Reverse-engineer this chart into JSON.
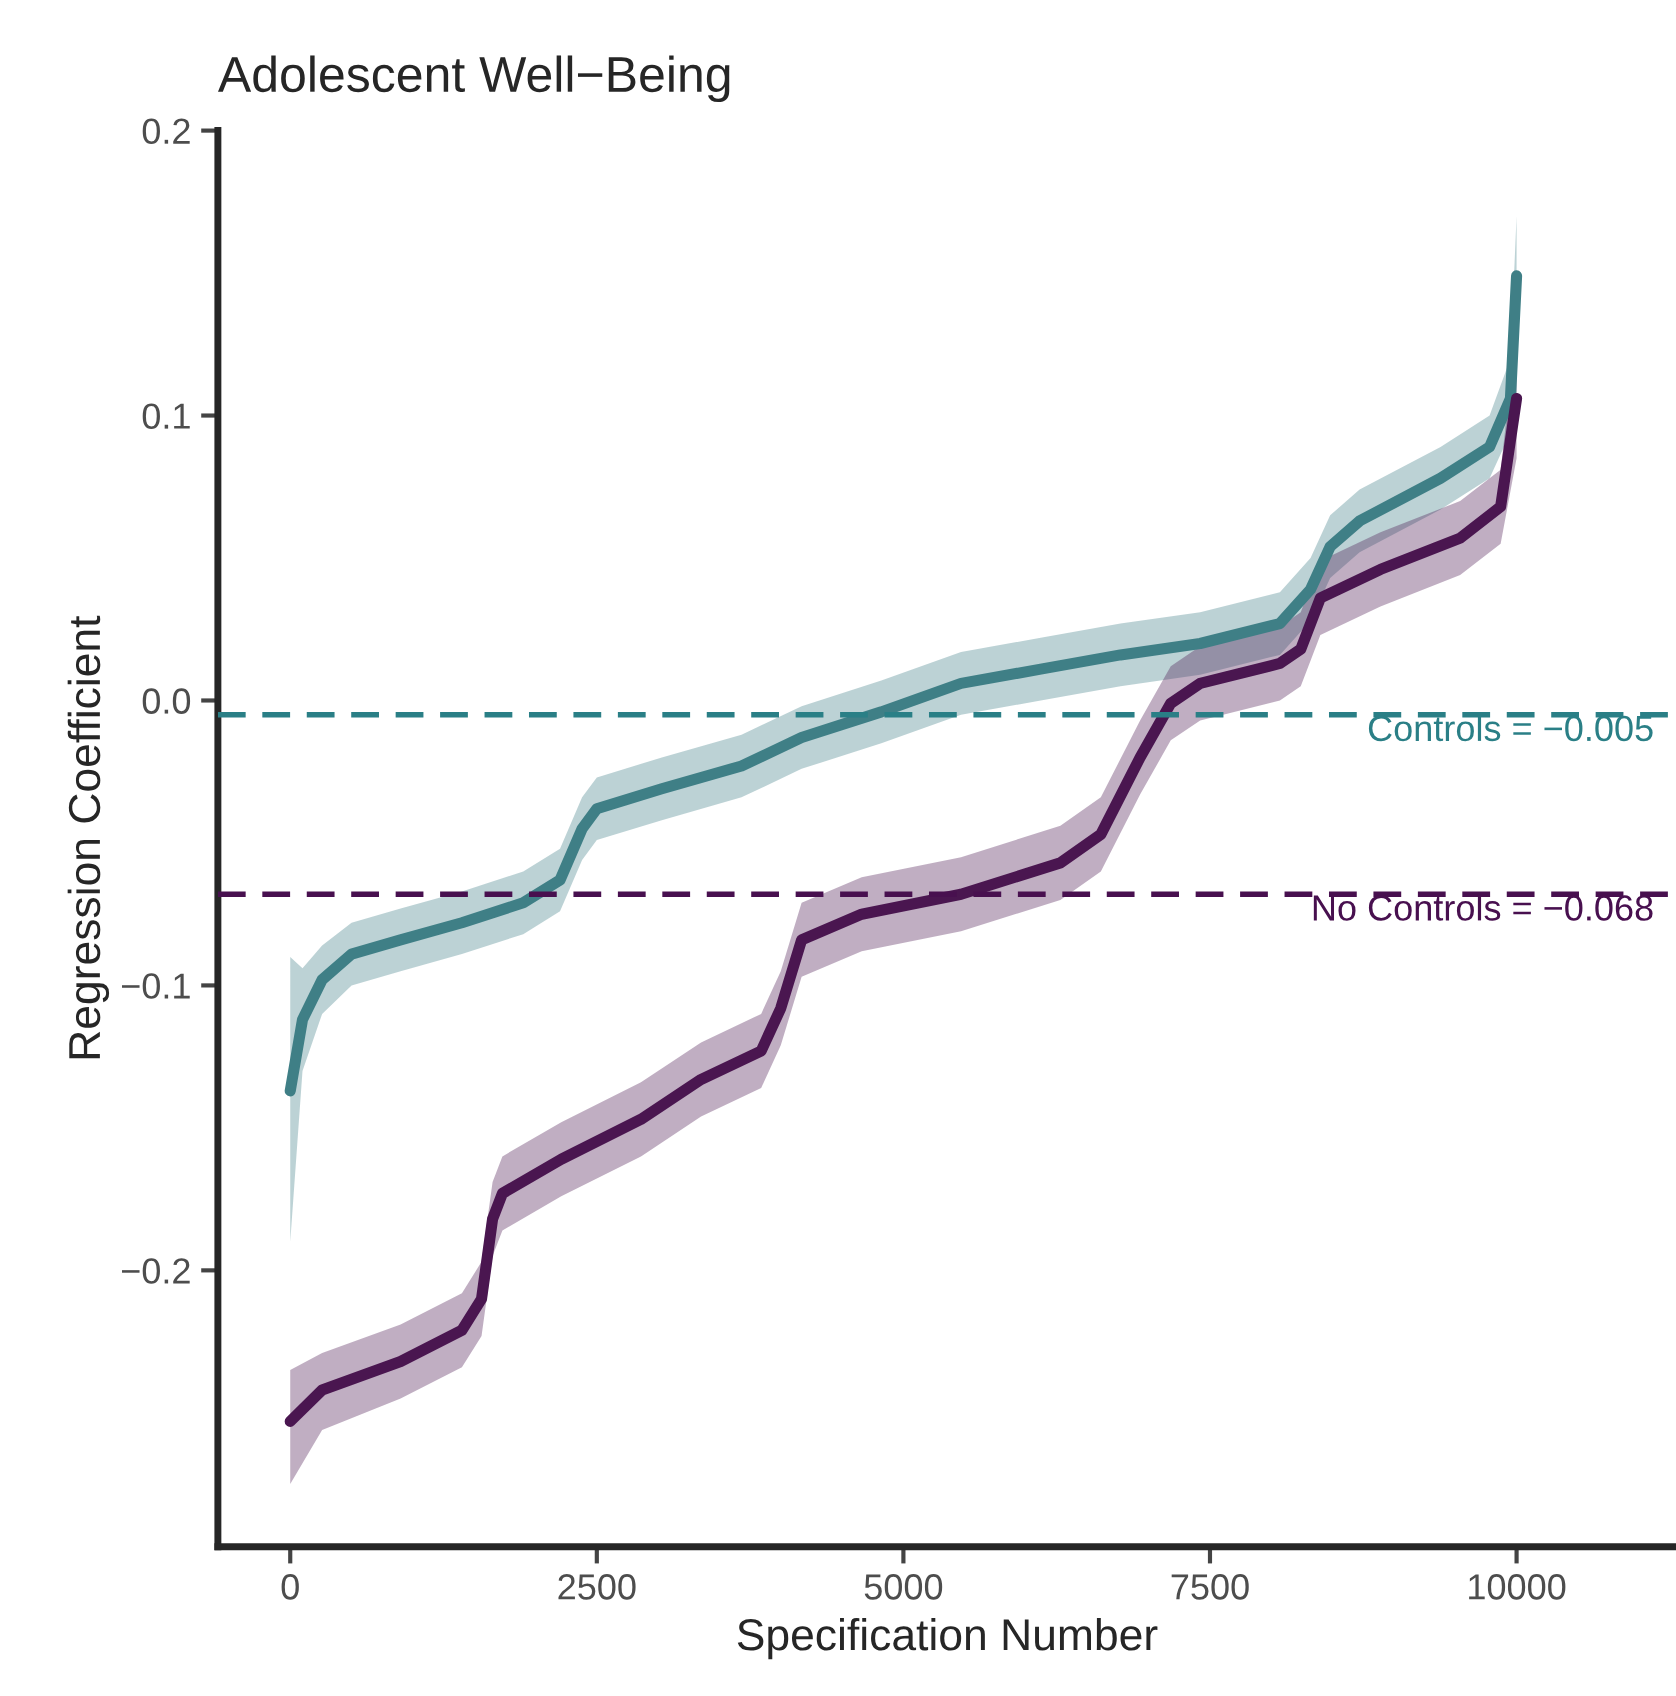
{
  "chart_data": {
    "type": "line",
    "title": "Adolescent Well−Being",
    "xlabel": "Specification Number",
    "ylabel": "Regression Coefficient",
    "xlim": [
      -590,
      11300
    ],
    "ylim": [
      -0.297,
      0.2
    ],
    "xticks": [
      0,
      2500,
      5000,
      7500,
      10000
    ],
    "yticks": [
      {
        "value": -0.2,
        "label": "−0.2"
      },
      {
        "value": -0.1,
        "label": "−0.1"
      },
      {
        "value": 0,
        "label": "0.0"
      },
      {
        "value": 0.1,
        "label": "0.1"
      },
      {
        "value": 0.2,
        "label": "0.2"
      }
    ],
    "grid": false,
    "legend": false,
    "line_style": "solid",
    "marker": "none",
    "series": [
      {
        "color": "#3f7f86",
        "x": [
          0,
          100,
          260,
          500,
          900,
          1400,
          1900,
          2200,
          2380,
          2500,
          3030,
          3680,
          4170,
          4820,
          5470,
          6120,
          6770,
          7420,
          8070,
          8320,
          8480,
          8720,
          9380,
          9780,
          9950,
          10000
        ],
        "values": [
          -0.137,
          -0.112,
          -0.098,
          -0.089,
          -0.084,
          -0.078,
          -0.071,
          -0.063,
          -0.045,
          -0.038,
          -0.031,
          -0.023,
          -0.013,
          -0.004,
          0.006,
          0.011,
          0.016,
          0.02,
          0.027,
          0.039,
          0.054,
          0.063,
          0.078,
          0.089,
          0.106,
          0.149
        ],
        "lower": [
          -0.19,
          -0.13,
          -0.11,
          -0.1,
          -0.095,
          -0.089,
          -0.082,
          -0.074,
          -0.056,
          -0.049,
          -0.042,
          -0.034,
          -0.024,
          -0.015,
          -0.005,
          0.0,
          0.005,
          0.009,
          0.016,
          0.028,
          0.043,
          0.052,
          0.067,
          0.078,
          0.094,
          0.13
        ],
        "upper": [
          -0.09,
          -0.094,
          -0.086,
          -0.078,
          -0.073,
          -0.067,
          -0.06,
          -0.052,
          -0.034,
          -0.027,
          -0.02,
          -0.012,
          -0.002,
          0.007,
          0.017,
          0.022,
          0.027,
          0.031,
          0.038,
          0.05,
          0.065,
          0.074,
          0.089,
          0.1,
          0.12,
          0.17
        ]
      },
      {
        "color": "#4a1650",
        "x": [
          0,
          260,
          900,
          1400,
          1560,
          1650,
          1730,
          2210,
          2860,
          3350,
          3840,
          4000,
          4170,
          4660,
          5470,
          6280,
          6610,
          6930,
          7180,
          7420,
          8070,
          8240,
          8400,
          8890,
          9540,
          9870,
          10000
        ],
        "values": [
          -0.253,
          -0.242,
          -0.232,
          -0.221,
          -0.21,
          -0.182,
          -0.173,
          -0.161,
          -0.147,
          -0.133,
          -0.123,
          -0.108,
          -0.084,
          -0.075,
          -0.068,
          -0.057,
          -0.047,
          -0.02,
          -0.001,
          0.006,
          0.013,
          0.018,
          0.036,
          0.046,
          0.057,
          0.068,
          0.106
        ],
        "lower": [
          -0.275,
          -0.256,
          -0.245,
          -0.234,
          -0.223,
          -0.195,
          -0.186,
          -0.174,
          -0.16,
          -0.146,
          -0.136,
          -0.121,
          -0.097,
          -0.088,
          -0.081,
          -0.07,
          -0.06,
          -0.033,
          -0.014,
          -0.007,
          0.0,
          0.005,
          0.023,
          0.033,
          0.044,
          0.055,
          0.085
        ],
        "upper": [
          -0.235,
          -0.229,
          -0.219,
          -0.208,
          -0.197,
          -0.169,
          -0.16,
          -0.148,
          -0.134,
          -0.12,
          -0.11,
          -0.095,
          -0.071,
          -0.062,
          -0.055,
          -0.044,
          -0.034,
          -0.007,
          0.012,
          0.019,
          0.026,
          0.031,
          0.049,
          0.059,
          0.07,
          0.081,
          0.13
        ]
      }
    ],
    "ref_lines": [
      {
        "axis": "y",
        "value": -0.005,
        "label": "Controls = −0.005",
        "color": "#2a7f86",
        "line_style": "dashed"
      },
      {
        "axis": "y",
        "value": -0.068,
        "label": "No Controls = −0.068",
        "color": "#48104f",
        "line_style": "dashed"
      }
    ]
  }
}
